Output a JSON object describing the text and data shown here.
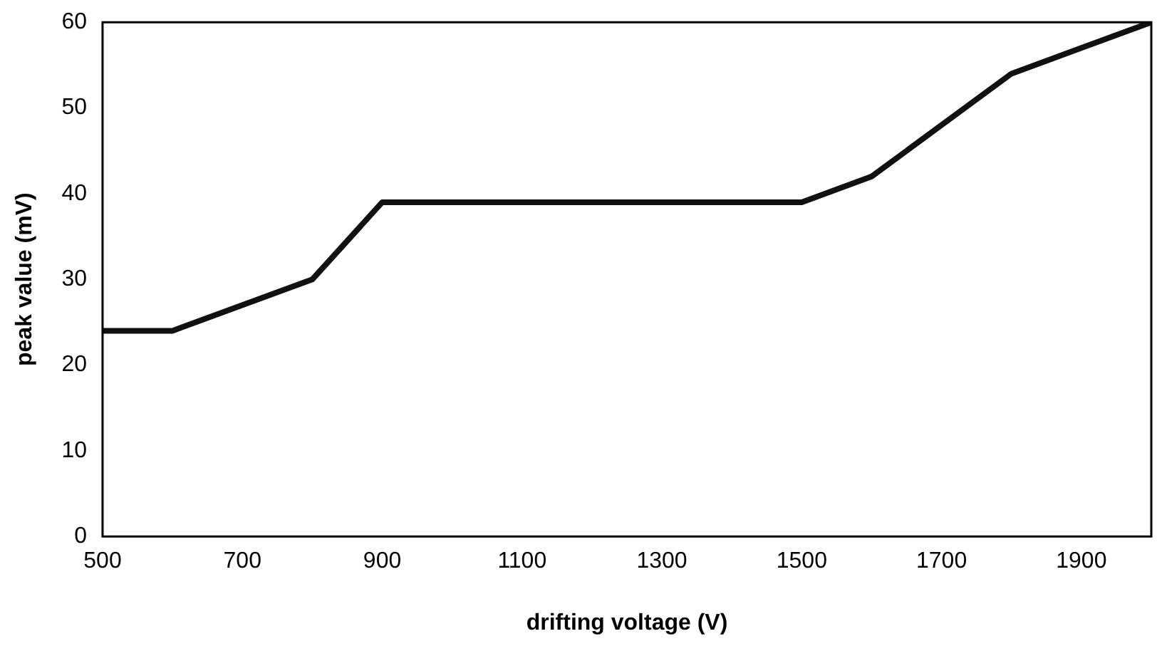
{
  "chart_data": {
    "type": "line",
    "xlabel": "drifting voltage (V)",
    "ylabel": "peak value (mV)",
    "x": [
      500,
      600,
      800,
      900,
      1500,
      1600,
      1800,
      2000
    ],
    "series": [
      {
        "color": "#111111",
        "values": [
          24,
          24,
          30,
          39,
          39,
          42,
          54,
          60
        ]
      }
    ],
    "xlim": [
      500,
      2000
    ],
    "xticks": [
      500,
      700,
      900,
      1100,
      1300,
      1500,
      1700,
      1900
    ],
    "ylim": [
      0,
      60
    ],
    "yticks": [
      0,
      10,
      20,
      30,
      40,
      50,
      60
    ],
    "grid": false,
    "legend": false,
    "marker": "none",
    "line_style": "solid"
  }
}
